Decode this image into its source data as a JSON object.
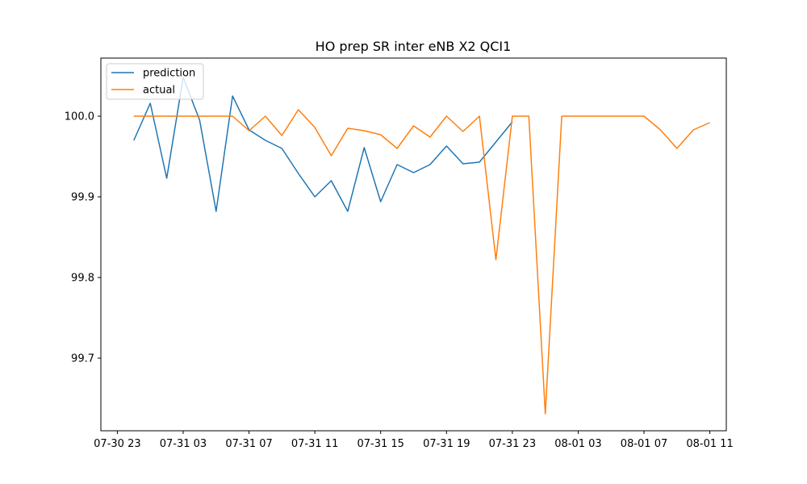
{
  "chart_data": {
    "type": "line",
    "title": "HO prep SR inter eNB X2 QCI1",
    "xlabel": "",
    "ylabel": "",
    "x_ticks": [
      "07-30 23",
      "07-31 03",
      "07-31 07",
      "07-31 11",
      "07-31 15",
      "07-31 19",
      "07-31 23",
      "08-01 03",
      "08-01 07",
      "08-01 11"
    ],
    "y_ticks": [
      "99.7",
      "99.8",
      "99.9",
      "100.0"
    ],
    "ylim": [
      99.61,
      100.072
    ],
    "xlim": [
      "07-30 22:00",
      "08-01 12:00"
    ],
    "legend_position": "upper left",
    "grid": false,
    "series": [
      {
        "name": "prediction",
        "color": "#1f77b4",
        "x": [
          "07-31 00",
          "07-31 01",
          "07-31 02",
          "07-31 03",
          "07-31 04",
          "07-31 05",
          "07-31 06",
          "07-31 07",
          "07-31 08",
          "07-31 09",
          "07-31 10",
          "07-31 11",
          "07-31 12",
          "07-31 13",
          "07-31 14",
          "07-31 15",
          "07-31 16",
          "07-31 17",
          "07-31 18",
          "07-31 19",
          "07-31 20",
          "07-31 21",
          "07-31 22",
          "07-31 23"
        ],
        "values": [
          99.97,
          100.016,
          99.923,
          100.048,
          99.995,
          99.882,
          100.025,
          99.983,
          99.97,
          99.96,
          99.929,
          99.9,
          99.92,
          99.882,
          99.961,
          99.894,
          99.94,
          99.93,
          99.94,
          99.963,
          99.941,
          99.943,
          99.968,
          99.993
        ]
      },
      {
        "name": "actual",
        "color": "#ff7f0e",
        "x": [
          "07-31 00",
          "07-31 01",
          "07-31 02",
          "07-31 03",
          "07-31 04",
          "07-31 05",
          "07-31 06",
          "07-31 07",
          "07-31 08",
          "07-31 09",
          "07-31 10",
          "07-31 11",
          "07-31 12",
          "07-31 13",
          "07-31 14",
          "07-31 15",
          "07-31 16",
          "07-31 17",
          "07-31 18",
          "07-31 19",
          "07-31 20",
          "07-31 21",
          "07-31 22",
          "07-31 23",
          "08-01 00",
          "08-01 01",
          "08-01 02",
          "08-01 03",
          "08-01 04",
          "08-01 05",
          "08-01 06",
          "08-01 07",
          "08-01 08",
          "08-01 09",
          "08-01 10",
          "08-01 11"
        ],
        "values": [
          100.0,
          100.0,
          100.0,
          100.0,
          100.0,
          100.0,
          100.0,
          99.982,
          100.0,
          99.976,
          100.008,
          99.986,
          99.951,
          99.985,
          99.982,
          99.977,
          99.96,
          99.988,
          99.974,
          100.0,
          99.981,
          100.0,
          99.822,
          100.0,
          100.0,
          99.631,
          100.0,
          100.0,
          100.0,
          100.0,
          100.0,
          100.0,
          99.983,
          99.96,
          99.983,
          99.992
        ]
      }
    ]
  }
}
